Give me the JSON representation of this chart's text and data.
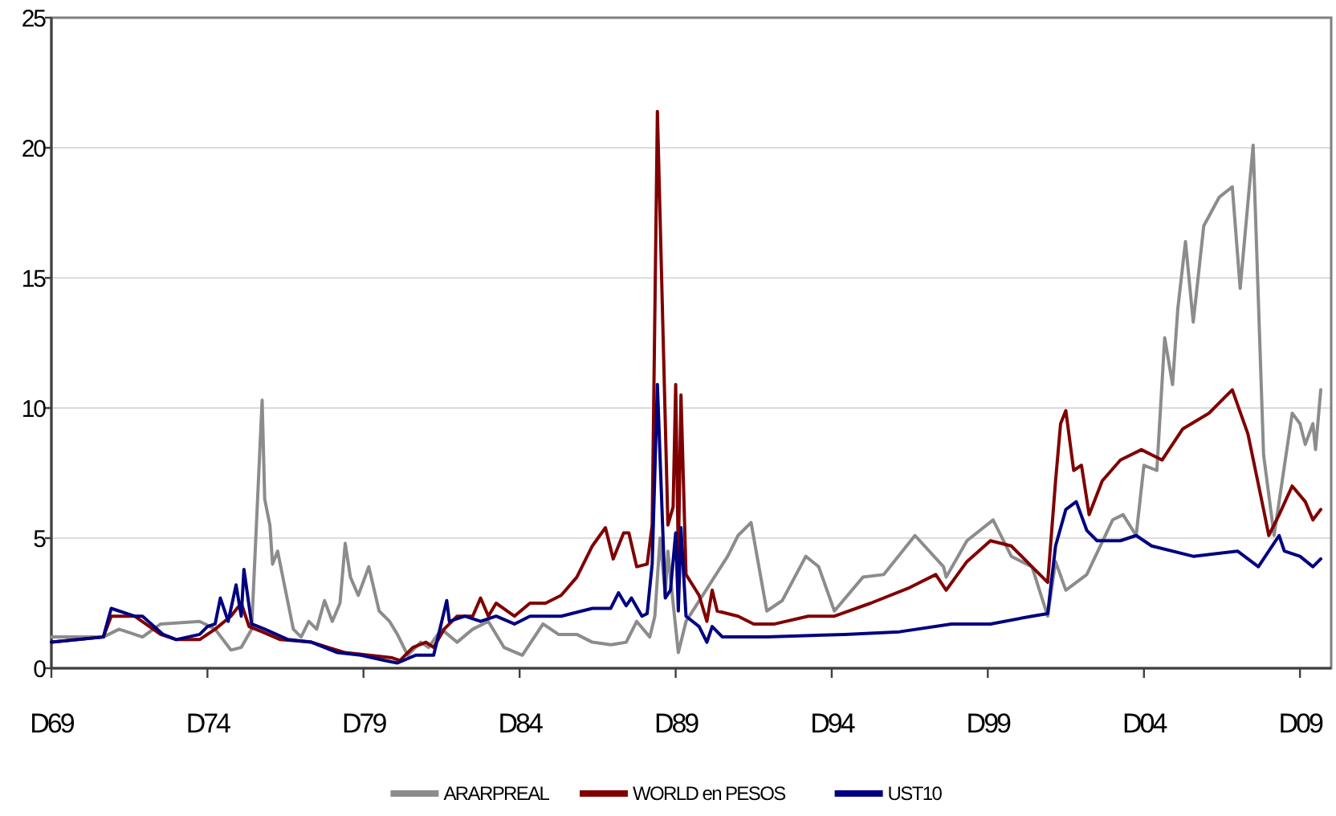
{
  "chart_data": {
    "type": "line",
    "xlim": [
      "1969-12",
      "2010-12"
    ],
    "ylim": [
      0,
      25
    ],
    "yticks": [
      0,
      5,
      10,
      15,
      20,
      25
    ],
    "xticks": [
      {
        "value": "1969-12",
        "label": "D69"
      },
      {
        "value": "1974-12",
        "label": "D74"
      },
      {
        "value": "1979-12",
        "label": "D79"
      },
      {
        "value": "1984-12",
        "label": "D84"
      },
      {
        "value": "1989-12",
        "label": "D89"
      },
      {
        "value": "1994-12",
        "label": "D94"
      },
      {
        "value": "1999-12",
        "label": "D99"
      },
      {
        "value": "2004-12",
        "label": "D04"
      },
      {
        "value": "2009-12",
        "label": "D09"
      }
    ],
    "grid": "y",
    "legend": "bottom",
    "marker": "none",
    "line_style": "solid",
    "series": [
      {
        "name": "ARARPREAL",
        "color": "#8c8c8c",
        "x": [
          "1969-12",
          "1971-08",
          "1972-02",
          "1972-11",
          "1973-06",
          "1974-09",
          "1975-03",
          "1975-09",
          "1976-01",
          "1976-05",
          "1976-09",
          "1976-10",
          "1976-12",
          "1977-01",
          "1977-03",
          "1977-06",
          "1977-09",
          "1977-12",
          "1978-03",
          "1978-06",
          "1978-09",
          "1978-12",
          "1979-03",
          "1979-05",
          "1979-07",
          "1979-10",
          "1980-02",
          "1980-06",
          "1980-10",
          "1981-01",
          "1981-05",
          "1981-10",
          "1982-01",
          "1982-06",
          "1982-12",
          "1983-06",
          "1983-12",
          "1984-06",
          "1985-01",
          "1985-09",
          "1986-03",
          "1986-10",
          "1987-04",
          "1987-11",
          "1988-05",
          "1988-09",
          "1989-02",
          "1989-04",
          "1989-06",
          "1989-08",
          "1989-09",
          "1989-11",
          "1990-01",
          "1990-04",
          "1991-08",
          "1991-12",
          "1992-05",
          "1992-11",
          "1993-05",
          "1994-02",
          "1994-07",
          "1995-01",
          "1995-12",
          "1996-08",
          "1997-08",
          "1998-07",
          "1998-08",
          "1999-04",
          "2000-02",
          "2000-09",
          "2001-05",
          "2001-11",
          "2002-02",
          "2002-06",
          "2003-02",
          "2003-12",
          "2004-04",
          "2004-09",
          "2004-12",
          "2005-05",
          "2005-08",
          "2005-11",
          "2006-01",
          "2006-04",
          "2006-07",
          "2006-11",
          "2007-05",
          "2007-10",
          "2008-01",
          "2008-06",
          "2008-10",
          "2009-02",
          "2009-09",
          "2009-12",
          "2010-02",
          "2010-05",
          "2010-06",
          "2010-08"
        ],
        "values": [
          1.2,
          1.2,
          1.5,
          1.2,
          1.7,
          1.8,
          1.5,
          0.7,
          0.8,
          1.5,
          10.3,
          6.5,
          5.5,
          4,
          4.5,
          3,
          1.5,
          1.2,
          1.8,
          1.5,
          2.6,
          1.8,
          2.5,
          4.8,
          3.5,
          2.8,
          3.9,
          2.2,
          1.8,
          1.3,
          0.5,
          1.0,
          0.8,
          1.5,
          1.0,
          1.5,
          1.8,
          0.8,
          0.5,
          1.7,
          1.3,
          1.3,
          1.0,
          0.9,
          1.0,
          1.8,
          1.2,
          2.0,
          5.0,
          2.8,
          4.5,
          2.5,
          0.6,
          1.8,
          4.3,
          5.1,
          5.6,
          2.2,
          2.6,
          4.3,
          3.9,
          2.2,
          3.5,
          3.6,
          5.1,
          3.9,
          3.5,
          4.9,
          5.7,
          4.3,
          3.9,
          2.0,
          4.1,
          3.0,
          3.6,
          5.7,
          5.9,
          5.1,
          7.8,
          7.6,
          12.7,
          10.9,
          13.8,
          16.4,
          13.3,
          17.0,
          18.1,
          18.5,
          14.6,
          20.1,
          8.2,
          5.1,
          9.8,
          9.4,
          8.6,
          9.4,
          8.4,
          10.7
        ]
      },
      {
        "name": "WORLD en PESOS",
        "color": "#800000",
        "x": [
          "1969-12",
          "1971-08",
          "1971-11",
          "1972-08",
          "1973-06",
          "1973-12",
          "1974-09",
          "1975-03",
          "1975-09",
          "1976-01",
          "1976-04",
          "1976-09",
          "1977-04",
          "1978-04",
          "1979-05",
          "1980-02",
          "1980-11",
          "1981-02",
          "1981-07",
          "1981-12",
          "1982-03",
          "1982-07",
          "1982-12",
          "1983-06",
          "1983-09",
          "1983-12",
          "1984-03",
          "1984-10",
          "1985-04",
          "1985-10",
          "1986-04",
          "1986-10",
          "1987-04",
          "1987-09",
          "1987-12",
          "1988-04",
          "1988-06",
          "1988-09",
          "1989-01",
          "1989-03",
          "1989-05",
          "1989-09",
          "1989-11",
          "1989-12",
          "1990-01",
          "1990-02",
          "1990-04",
          "1990-09",
          "1990-12",
          "1991-02",
          "1991-04",
          "1991-12",
          "1992-06",
          "1993-02",
          "1994-03",
          "1995-01",
          "1996-03",
          "1997-06",
          "1998-04",
          "1998-08",
          "1999-04",
          "2000-01",
          "2000-09",
          "2001-05",
          "2001-11",
          "2002-02",
          "2002-04",
          "2002-06",
          "2002-09",
          "2002-12",
          "2003-03",
          "2003-08",
          "2004-03",
          "2004-11",
          "2005-07",
          "2006-03",
          "2007-01",
          "2007-10",
          "2008-04",
          "2008-10",
          "2008-12",
          "2009-04",
          "2009-09",
          "2010-02",
          "2010-05",
          "2010-08"
        ],
        "values": [
          1.0,
          1.2,
          2.0,
          2.0,
          1.3,
          1.1,
          1.1,
          1.5,
          2.0,
          2.5,
          1.6,
          1.4,
          1.1,
          1.0,
          0.6,
          0.5,
          0.4,
          0.3,
          0.8,
          1.0,
          0.8,
          1.5,
          2.0,
          2.0,
          2.7,
          2.0,
          2.5,
          2.0,
          2.5,
          2.5,
          2.8,
          3.5,
          4.7,
          5.4,
          4.2,
          5.2,
          5.2,
          3.9,
          4.0,
          5.5,
          21.4,
          5.5,
          6.2,
          10.9,
          4.2,
          10.5,
          3.6,
          2.8,
          1.8,
          3.0,
          2.2,
          2.0,
          1.7,
          1.7,
          2.0,
          2.0,
          2.5,
          3.1,
          3.6,
          3.0,
          4.1,
          4.9,
          4.7,
          3.9,
          3.3,
          7.2,
          9.4,
          9.9,
          7.6,
          7.8,
          5.9,
          7.2,
          8.0,
          8.4,
          8.0,
          9.2,
          9.8,
          10.7,
          9.0,
          6.1,
          5.1,
          5.9,
          7.0,
          6.4,
          5.7,
          6.1
        ]
      },
      {
        "name": "UST10",
        "color": "#000080",
        "x": [
          "1969-12",
          "1971-08",
          "1971-11",
          "1972-08",
          "1972-11",
          "1973-07",
          "1973-12",
          "1974-09",
          "1974-12",
          "1975-03",
          "1975-05",
          "1975-08",
          "1975-11",
          "1976-01",
          "1976-02",
          "1976-05",
          "1976-10",
          "1977-07",
          "1978-04",
          "1979-02",
          "1979-11",
          "1980-08",
          "1981-01",
          "1981-08",
          "1982-03",
          "1982-08",
          "1982-09",
          "1983-03",
          "1983-09",
          "1984-03",
          "1984-10",
          "1985-04",
          "1986-04",
          "1987-04",
          "1987-11",
          "1988-02",
          "1988-05",
          "1988-07",
          "1988-11",
          "1989-01",
          "1989-03",
          "1989-05",
          "1989-08",
          "1989-10",
          "1989-12",
          "1990-01",
          "1990-02",
          "1990-04",
          "1990-09",
          "1990-12",
          "1991-02",
          "1991-06",
          "1992-11",
          "1995-05",
          "1997-02",
          "1998-10",
          "2000-01",
          "2001-05",
          "2001-11",
          "2002-02",
          "2002-06",
          "2002-10",
          "2003-02",
          "2003-06",
          "2004-03",
          "2004-09",
          "2005-03",
          "2006-07",
          "2007-12",
          "2008-08",
          "2009-04",
          "2009-06",
          "2009-12",
          "2010-05",
          "2010-08"
        ],
        "values": [
          1.0,
          1.2,
          2.3,
          2.0,
          2.0,
          1.3,
          1.1,
          1.3,
          1.6,
          1.7,
          2.7,
          1.8,
          3.2,
          2.0,
          3.8,
          1.7,
          1.5,
          1.1,
          1.0,
          0.6,
          0.5,
          0.3,
          0.2,
          0.5,
          0.5,
          2.6,
          1.8,
          2.0,
          1.8,
          2.0,
          1.7,
          2.0,
          2.0,
          2.3,
          2.3,
          2.9,
          2.4,
          2.7,
          2.0,
          2.1,
          4.0,
          10.9,
          2.7,
          3.0,
          5.2,
          2.2,
          5.4,
          2.0,
          1.6,
          1.0,
          1.6,
          1.2,
          1.2,
          1.3,
          1.4,
          1.7,
          1.7,
          2.0,
          2.1,
          4.7,
          6.1,
          6.4,
          5.3,
          4.9,
          4.9,
          5.1,
          4.7,
          4.3,
          4.5,
          3.9,
          5.1,
          4.5,
          4.3,
          3.9,
          4.2
        ]
      }
    ]
  }
}
